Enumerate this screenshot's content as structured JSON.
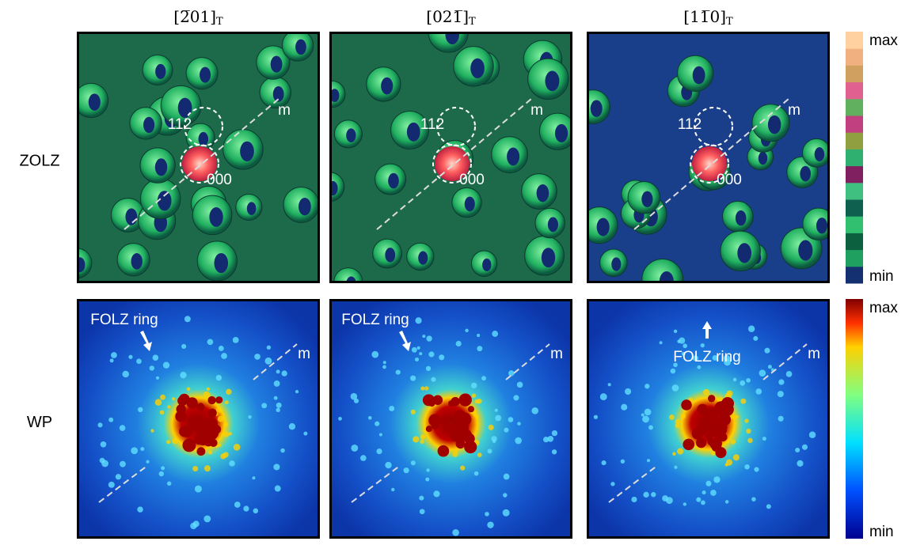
{
  "columns": [
    {
      "label": "[2̅01]",
      "subscript": "T"
    },
    {
      "label": "[021̅]",
      "subscript": "T"
    },
    {
      "label": "[11̅0]",
      "subscript": "T"
    }
  ],
  "rows": [
    {
      "label": "ZOLZ",
      "panels": [
        {
          "annotations": [
            "112",
            "000",
            "m"
          ]
        },
        {
          "annotations": [
            "112",
            "000",
            "m"
          ]
        },
        {
          "annotations": [
            "112",
            "000",
            "m"
          ]
        }
      ]
    },
    {
      "label": "WP",
      "panels": [
        {
          "annotations": [
            "FOLZ ring",
            "m"
          ]
        },
        {
          "annotations": [
            "FOLZ ring",
            "m"
          ]
        },
        {
          "annotations": [
            "FOLZ ring",
            "m"
          ]
        }
      ]
    }
  ],
  "colorbars": [
    {
      "max": "max",
      "min": "min"
    },
    {
      "max": "max",
      "min": "min"
    }
  ]
}
